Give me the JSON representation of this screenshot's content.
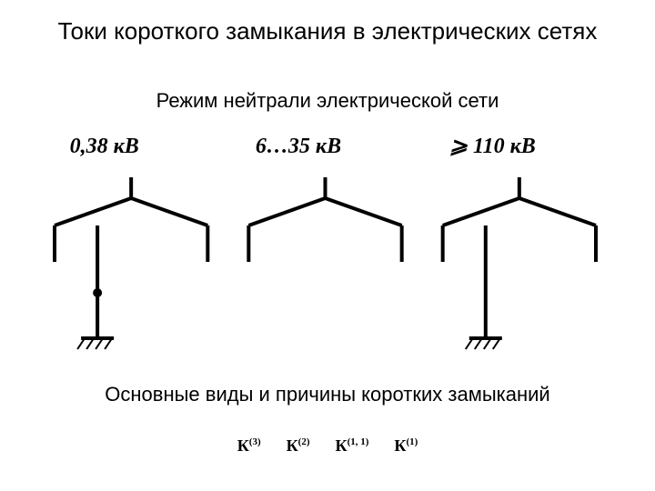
{
  "title": "Токи короткого замыкания в электрических сетях",
  "subtitle1": "Режим нейтрали электрической сети",
  "subtitle2": "Основные виды и причины коротких замыканий",
  "diagram": {
    "stroke_color": "#000000",
    "stroke_width_main": 4,
    "stroke_width_light": 2,
    "background_color": "#ffffff",
    "items": [
      {
        "label": "0,38 кВ",
        "neutral_grounded": true,
        "neutral_solid_dot": true,
        "ground_symbol": true
      },
      {
        "label": "6…35 кВ",
        "neutral_grounded": false,
        "neutral_solid_dot": false,
        "ground_symbol": false
      },
      {
        "label": "⩾ 110 кВ",
        "neutral_grounded": true,
        "neutral_solid_dot": false,
        "ground_symbol": true
      }
    ]
  },
  "k_types": [
    {
      "base": "К",
      "sup": "(3)"
    },
    {
      "base": "К",
      "sup": "(2)"
    },
    {
      "base": "К",
      "sup": "(1, 1)"
    },
    {
      "base": "К",
      "sup": "(1)"
    }
  ]
}
